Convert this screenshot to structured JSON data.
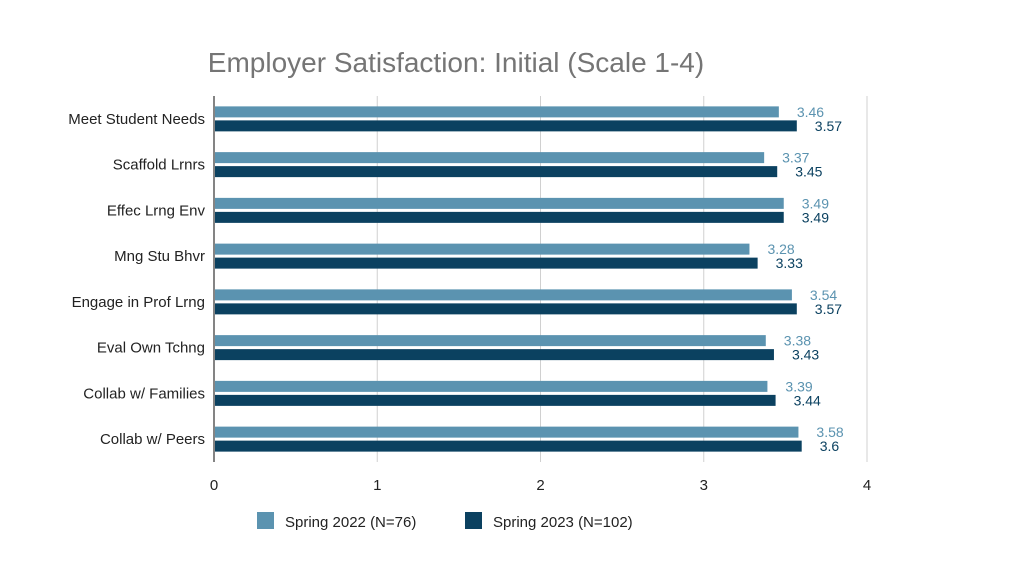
{
  "chart_data": {
    "type": "bar",
    "orientation": "horizontal",
    "title": "Employer Satisfaction: Initial (Scale 1-4)",
    "categories": [
      "Meet Student Needs",
      "Scaffold Lrnrs",
      "Effec Lrng Env",
      "Mng Stu Bhvr",
      "Engage in Prof Lrng",
      "Eval Own Tchng",
      "Collab w/ Families",
      "Collab w/ Peers"
    ],
    "series": [
      {
        "name": "Spring 2022 (N=76)",
        "color": "#5b93b0",
        "values": [
          3.46,
          3.37,
          3.49,
          3.28,
          3.54,
          3.38,
          3.39,
          3.58
        ],
        "labels": [
          "3.46",
          "3.37",
          "3.49",
          "3.28",
          "3.54",
          "3.38",
          "3.39",
          "3.58"
        ]
      },
      {
        "name": "Spring 2023 (N=102)",
        "color": "#0b4160",
        "values": [
          3.57,
          3.45,
          3.49,
          3.33,
          3.57,
          3.43,
          3.44,
          3.6
        ],
        "labels": [
          "3.57",
          "3.45",
          "3.49",
          "3.33",
          "3.57",
          "3.43",
          "3.44",
          "3.6"
        ]
      }
    ],
    "xlim": [
      0,
      4
    ],
    "xticks": [
      "0",
      "1",
      "2",
      "3",
      "4"
    ],
    "grid": true,
    "legend": "bottom",
    "xlabel": "",
    "ylabel": ""
  }
}
